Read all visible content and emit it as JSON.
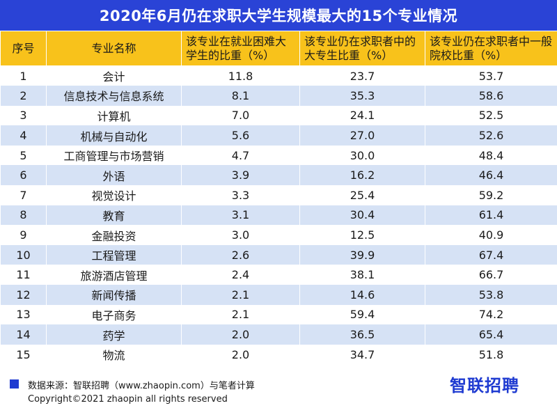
{
  "title": "2020年6月仍在求职大学生规模最大的15个专业情况",
  "headers": [
    "序号",
    "专业名称",
    "该专业在就业困难大学生的比重（%）",
    "该专业仍在求职者中的大专生比重（%）",
    "该专业仍在求职者中一般院校比重（%）"
  ],
  "chart_data": {
    "type": "table",
    "title": "2020年6月仍在求职大学生规模最大的15个专业情况",
    "columns": [
      "序号",
      "专业名称",
      "该专业在就业困难大学生的比重（%）",
      "该专业仍在求职者中的大专生比重（%）",
      "该专业仍在求职者中一般院校比重（%）"
    ],
    "rows": [
      [
        "1",
        "会计",
        "11.8",
        "23.7",
        "53.7"
      ],
      [
        "2",
        "信息技术与信息系统",
        "8.1",
        "35.3",
        "58.6"
      ],
      [
        "3",
        "计算机",
        "7.0",
        "24.1",
        "52.5"
      ],
      [
        "4",
        "机械与自动化",
        "5.6",
        "27.0",
        "52.6"
      ],
      [
        "5",
        "工商管理与市场营销",
        "4.7",
        "30.0",
        "48.4"
      ],
      [
        "6",
        "外语",
        "3.9",
        "16.2",
        "46.4"
      ],
      [
        "7",
        "视觉设计",
        "3.3",
        "25.4",
        "59.2"
      ],
      [
        "8",
        "教育",
        "3.1",
        "30.4",
        "61.4"
      ],
      [
        "9",
        "金融投资",
        "3.0",
        "12.5",
        "40.9"
      ],
      [
        "10",
        "工程管理",
        "2.6",
        "39.9",
        "67.4"
      ],
      [
        "11",
        "旅游酒店管理",
        "2.4",
        "38.1",
        "66.7"
      ],
      [
        "12",
        "新闻传播",
        "2.1",
        "14.6",
        "53.8"
      ],
      [
        "13",
        "电子商务",
        "2.1",
        "59.4",
        "74.2"
      ],
      [
        "14",
        "药学",
        "2.0",
        "36.5",
        "65.4"
      ],
      [
        "15",
        "物流",
        "2.0",
        "34.7",
        "51.8"
      ]
    ]
  },
  "footer": {
    "source": "数据来源：智联招聘（www.zhaopin.com）与笔者计算",
    "brand": "智联招聘",
    "copyright": "Copyright©2021 zhaopin all rights reserved"
  },
  "colors": {
    "title_bg": "#2a43d6",
    "header_bg": "#f8c21b",
    "stripe": "#d6e2f5",
    "brand": "#1f3bd1"
  }
}
